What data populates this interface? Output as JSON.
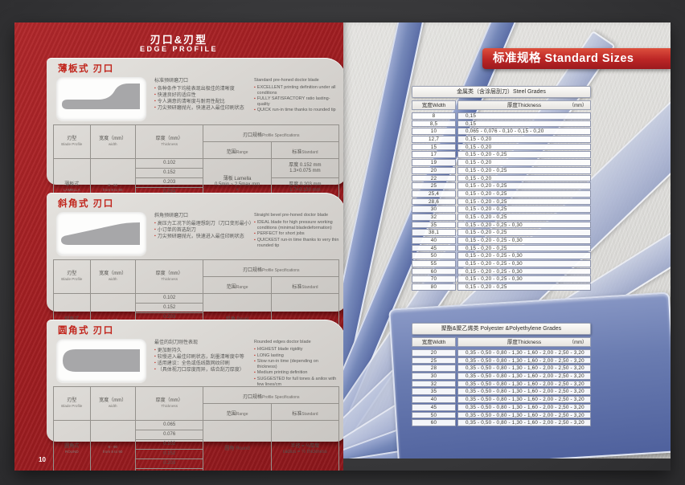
{
  "colors": {
    "page_red": "#a01d21",
    "banner_red": "#bb2525",
    "blade_blue": "#6a7cb1",
    "panel_gray": "#d6d3cf",
    "title_red": "#c1251c"
  },
  "left_page": {
    "page_number": "10",
    "title_cn": "刃口&刃型",
    "title_en": "EDGE PROFILE",
    "table_headers": {
      "blade_profile_cn": "刃型",
      "blade_profile_en": "Blade Profile",
      "width_cn": "宽度（mm）",
      "width_en": "width",
      "thickness_cn": "厚度（mm）",
      "thickness_en": "Thickness",
      "spec_cn": "刃口规格",
      "spec_en": "Profile Specifications",
      "range_cn": "范围",
      "range_en": "Range",
      "standard_cn": "标准",
      "standard_en": "Standard"
    },
    "sections": [
      {
        "id": "lamella",
        "tab_title": "薄板式  刃口",
        "cn_header": "标准预研磨刀口",
        "cn_bullets": [
          "各种条件下均能表现出极佳的清晰度",
          "快速良好的适应性",
          "令人满意的清晰度与耐用性配比",
          "刀尖预研磨抛光，快速进入最佳印刷状态"
        ],
        "en_header": "Standard pre-honed doctor blade",
        "en_bullets": [
          "EXCELLENT printing definition under all conditions",
          "FULLY SATISFACTORY ratio lasting-quality",
          "QUICK run-in time thanks to rounded tip"
        ],
        "blade_cn": "薄板式",
        "blade_en": "LAMELLA",
        "width_lines": [
          "8 - 90",
          "from 8 to 90"
        ],
        "thickness_rows": [
          "0.102",
          "0.152",
          "0.203",
          "0.254",
          "0.305",
          "0.381"
        ],
        "range_lines": [
          "薄板 Lamella",
          "0.5min ~ 2.5max mm",
          "×",
          "from 0.04 mm"
        ],
        "standard_mode": "triple",
        "standard_cells": [
          [
            "厚度 0.152 mm",
            "1.3×0.075 mm"
          ],
          [
            "厚度 0.203 mm",
            "1.7×0.130 mm"
          ],
          [
            "厚度 0.254 mm",
            "1.3×0.125 mm"
          ]
        ]
      },
      {
        "id": "bevel",
        "tab_title": "斜角式  刃口",
        "cn_header": "斜角预研磨刀口",
        "cn_bullets": [
          "高压力工况下的最理想刮刀（刀口变形最小）",
          "小订单的首选刮刀",
          "刀尖预研磨抛光，快速进入最佳印刷状态"
        ],
        "en_header": "Straight bevel pre-honed doctor blade",
        "en_bullets": [
          "IDEAL blade for high pressure working conditions (minimal bladedeformation)",
          "PERFECT for short jobs",
          "QUICKEST run-in time thanks to very thin rounded tip"
        ],
        "blade_cn": "斜角式",
        "blade_en": "Bevel",
        "width_lines": [
          "8 - 90",
          "from 8 to 90"
        ],
        "thickness_rows": [
          "0.102",
          "0.152",
          "0.203",
          "0.254",
          "0.305",
          "0.381"
        ],
        "range_lines": [
          "斜角 Bevel",
          "from 2° to 60°"
        ],
        "standard_mode": "single",
        "standard_cells": [
          [
            "4° - 15°"
          ]
        ]
      },
      {
        "id": "round",
        "tab_title": "圆角式  刃口",
        "cn_header": "最佳的刮刀刚性表现",
        "cn_bullets": [
          "更加耐持久",
          "较慢进入最佳印刷状态，刮墨清晰度中等",
          "适用建议：全色或低线数网纹印刷",
          "（具体视刀口厚度而异，结合刮刀厚度）"
        ],
        "en_header": "Rounded edges doctor blade",
        "en_bullets": [
          "HIGHEST blade rigidity",
          "LONG lasting",
          "Slow run-in time (depending on thickness)",
          "Medium printing definition",
          "SUGGESTED for full tones & anilox with few lines/cm"
        ],
        "blade_cn": "圆角式",
        "blade_en": "ROUND",
        "width_lines": [
          "8 - 90",
          "from 8 to 90"
        ],
        "thickness_rows": [
          "0.065",
          "0.076",
          "0.102",
          "0.152",
          "0.203",
          "0.254"
        ],
        "range_lines": [
          "圆角 Round"
        ],
        "standard_mode": "single",
        "standard_cells": [
          [
            "半径 = ½厚度",
            "radius = ½ thickness"
          ]
        ]
      }
    ]
  },
  "right_page": {
    "banner": "标准规格 Standard Sizes",
    "steel_table": {
      "title": "金属类（含涂层刮刀）Steel Grades",
      "width_header": "宽度Width",
      "thickness_header": "厚度Thickness",
      "unit": "（mm）",
      "rows": [
        [
          "8",
          "0,15"
        ],
        [
          "8,5",
          "0,15"
        ],
        [
          "10",
          "0,065 - 0,076 - 0,10 - 0,15 - 0,20"
        ],
        [
          "12,7",
          "0,15 - 0,20"
        ],
        [
          "15",
          "0,15 - 0,20"
        ],
        [
          "17",
          "0,15 - 0,20 - 0,25"
        ],
        [
          "19",
          "0,15 - 0,20"
        ],
        [
          "20",
          "0,15 - 0,20 - 0,25"
        ],
        [
          "22",
          "0,15 - 0,20"
        ],
        [
          "25",
          "0,15 - 0,20 - 0,25"
        ],
        [
          "25,4",
          "0,15 - 0,20 - 0,25"
        ],
        [
          "28,6",
          "0,15 - 0,20 - 0,25"
        ],
        [
          "30",
          "0,15 - 0,20 - 0,25"
        ],
        [
          "32",
          "0,15 - 0,20 - 0,25"
        ],
        [
          "35",
          "0,15 - 0,20 - 0,25 - 0,30"
        ],
        [
          "38,1",
          "0,15 - 0,20 - 0,25"
        ],
        [
          "40",
          "0,15 - 0,20 - 0,25 - 0,30"
        ],
        [
          "45",
          "0,15 - 0,20 - 0,25"
        ],
        [
          "50",
          "0,15 - 0,20 - 0,25 - 0,30"
        ],
        [
          "55",
          "0,15 - 0,20 - 0,25 - 0,30"
        ],
        [
          "60",
          "0,15 - 0,20 - 0,25 - 0,30"
        ],
        [
          "70",
          "0,15 - 0,20 - 0,25 - 0,30"
        ],
        [
          "80",
          "0,15 - 0,20 - 0,25"
        ]
      ]
    },
    "poly_table": {
      "title": "聚酯&聚乙烯类 Polyester &Polyethylene Grades",
      "width_header": "宽度Width",
      "thickness_header": "厚度Thickness",
      "unit": "（mm）",
      "rows": [
        [
          "20",
          "0,35 - 0,50 - 0,80 - 1,30 - 1,60 - 2,00 - 2,50 - 3,20"
        ],
        [
          "25",
          "0,35 - 0,50 - 0,80 - 1,30 - 1,60 - 2,00 - 2,50 - 3,20"
        ],
        [
          "28",
          "0,35 - 0,50 - 0,80 - 1,30 - 1,60 - 2,00 - 2,50 - 3,20"
        ],
        [
          "30",
          "0,35 - 0,50 - 0,80 - 1,30 - 1,60 - 2,00 - 2,50 - 3,20"
        ],
        [
          "32",
          "0,35 - 0,50 - 0,80 - 1,30 - 1,60 - 2,00 - 2,50 - 3,20"
        ],
        [
          "35",
          "0,35 - 0,50 - 0,80 - 1,30 - 1,60 - 2,00 - 2,50 - 3,20"
        ],
        [
          "40",
          "0,35 - 0,50 - 0,80 - 1,30 - 1,60 - 2,00 - 2,50 - 3,20"
        ],
        [
          "45",
          "0,35 - 0,50 - 0,80 - 1,30 - 1,60 - 2,00 - 2,50 - 3,20"
        ],
        [
          "50",
          "0,35 - 0,50 - 0,80 - 1,30 - 1,60 - 2,00 - 2,50 - 3,20"
        ],
        [
          "60",
          "0,35 - 0,50 - 0,80 - 1,30 - 1,60 - 2,00 - 2,50 - 3,20"
        ]
      ]
    }
  }
}
